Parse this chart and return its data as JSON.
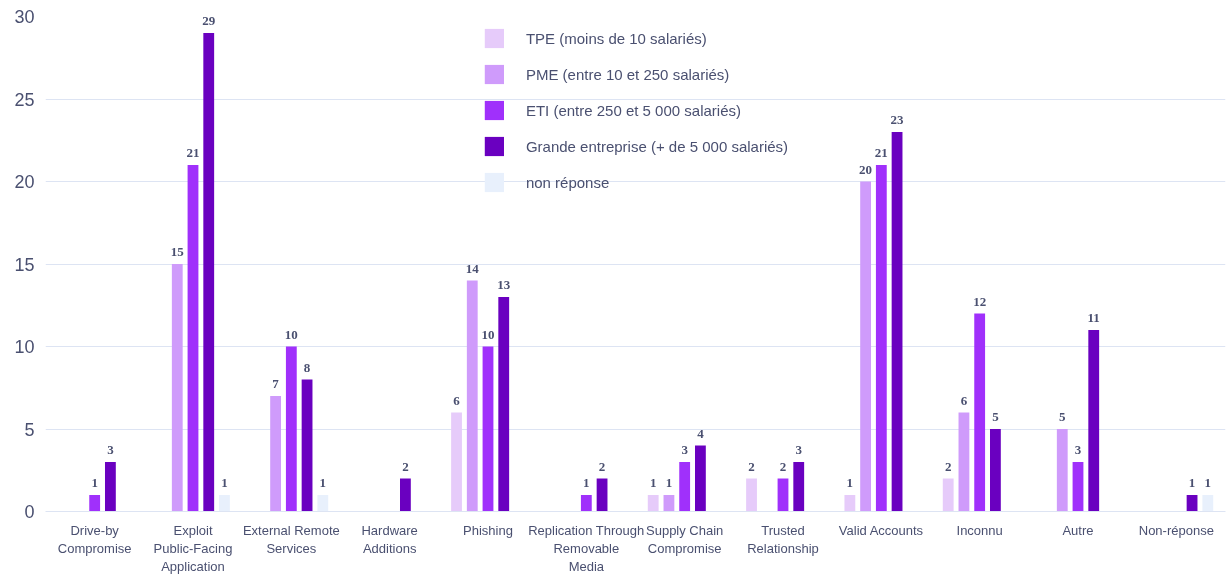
{
  "chart_data": {
    "type": "bar",
    "categories": [
      "Drive-by\nCompromise",
      "Exploit\nPublic-Facing\nApplication",
      "External Remote\nServices",
      "Hardware\nAdditions",
      "Phishing",
      "Replication Through\nRemovable\nMedia",
      "Supply Chain\nCompromise",
      "Trusted\nRelationship",
      "Valid Accounts",
      "Inconnu",
      "Autre",
      "Non-réponse"
    ],
    "series": [
      {
        "name": "TPE (moins de 10 salariés)",
        "color": "#e6cbfa",
        "values": [
          0,
          0,
          0,
          0,
          6,
          0,
          1,
          2,
          1,
          2,
          0,
          0
        ],
        "value_labels": [
          null,
          null,
          null,
          null,
          "6",
          null,
          "1",
          "2",
          "1",
          "2",
          null,
          null
        ]
      },
      {
        "name": "PME (entre 10 et 250 salariés)",
        "color": "#cf9bfb",
        "values": [
          0,
          15,
          7,
          0,
          14,
          0,
          1,
          0,
          20,
          6,
          5,
          0
        ],
        "value_labels": [
          null,
          "15",
          "7",
          null,
          "14",
          null,
          "1",
          null,
          "20",
          "6",
          "5",
          null
        ]
      },
      {
        "name": "ETI (entre 250 et 5 000 salariés)",
        "color": "#a030fb",
        "values": [
          1,
          21,
          10,
          0,
          10,
          1,
          3,
          2,
          21,
          12,
          3,
          0
        ],
        "value_labels": [
          "1",
          "21",
          "10",
          null,
          "10",
          "1",
          "3",
          "2",
          "21",
          "12",
          "3",
          null
        ]
      },
      {
        "name": "Grande entreprise (+ de 5 000 salariés)",
        "color": "#6a00c0",
        "values": [
          3,
          29,
          8,
          2,
          13,
          2,
          4,
          3,
          23,
          5,
          11,
          1
        ],
        "value_labels": [
          "3",
          "29",
          "8",
          "2",
          "13",
          "2",
          "4",
          "3",
          "23",
          "5",
          "11",
          "1"
        ]
      },
      {
        "name": "non réponse",
        "color": "#e8f0fc",
        "values": [
          0,
          1,
          1,
          0,
          0,
          0,
          0,
          0,
          0,
          0,
          0,
          1
        ],
        "value_labels": [
          null,
          "1",
          "1",
          null,
          null,
          null,
          null,
          null,
          null,
          null,
          null,
          "1"
        ]
      }
    ],
    "ylim": [
      0,
      30
    ],
    "yticks": [
      0,
      5,
      10,
      15,
      20,
      25,
      30
    ],
    "grid": "y",
    "legend": "top"
  }
}
